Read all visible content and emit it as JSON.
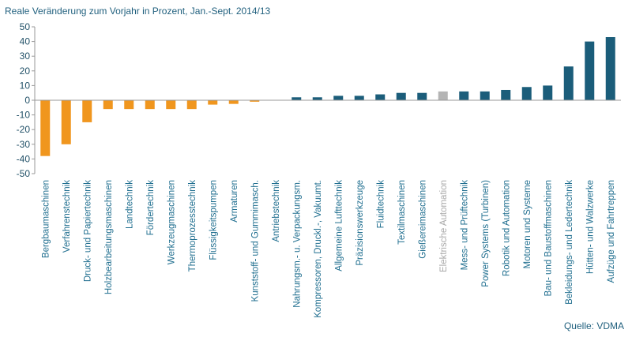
{
  "chart_data": {
    "type": "bar",
    "title": "Reale Veränderung zum Vorjahr in Prozent, Jan.-Sept. 2014/13",
    "source": "Quelle: VDMA",
    "categories": [
      "Bergbaumaschinen",
      "Verfahrenstechnik",
      "Druck- und Papiertechnik",
      "Holzbearbeitungsmaschinen",
      "Landtechnik",
      "Fördertechnik",
      "Werkzeugmaschinen",
      "Thermoprozesstechnik",
      "Flüssigkeitspumpen",
      "Armaturen",
      "Kunststoff- und Gummimasch.",
      "Antriebstechnik",
      "Nahrungsm.- u. Verpackungsm.",
      "Kompressoren, Druckl.-, Vakuumt.",
      "Allgemeine Lufttechnik",
      "Präzisionswerkzeuge",
      "Fluidtechnik",
      "Textilmaschinen",
      "Gießereimaschinen",
      "Elektrische Automation",
      "Mess- und Prüftechnik",
      "Power Systems (Turbinen)",
      "Robotik und Automation",
      "Motoren und Systeme",
      "Bau- und Baustoffmaschinen",
      "Bekleidungs- und Ledertechnik",
      "Hütten- und Walzwerke",
      "Aufzüge und Fahrtreppen"
    ],
    "values": [
      -38,
      -30,
      -15,
      -6,
      -6,
      -6,
      -6,
      -6,
      -3,
      -2.5,
      -1,
      0,
      2,
      2,
      3,
      3,
      4,
      5,
      5,
      6,
      6,
      6,
      7,
      9,
      10,
      23,
      40,
      43
    ],
    "colors": [
      "#f0961e",
      "#f0961e",
      "#f0961e",
      "#f0961e",
      "#f0961e",
      "#f0961e",
      "#f0961e",
      "#f0961e",
      "#f0961e",
      "#f0961e",
      "#f0961e",
      "#1b5d7a",
      "#1b5d7a",
      "#1b5d7a",
      "#1b5d7a",
      "#1b5d7a",
      "#1b5d7a",
      "#1b5d7a",
      "#1b5d7a",
      "#b4b4b4",
      "#1b5d7a",
      "#1b5d7a",
      "#1b5d7a",
      "#1b5d7a",
      "#1b5d7a",
      "#1b5d7a",
      "#1b5d7a",
      "#1b5d7a"
    ],
    "label_colors": [
      "#1f6e8f",
      "#1f6e8f",
      "#1f6e8f",
      "#1f6e8f",
      "#1f6e8f",
      "#1f6e8f",
      "#1f6e8f",
      "#1f6e8f",
      "#1f6e8f",
      "#1f6e8f",
      "#1f6e8f",
      "#1f6e8f",
      "#1f6e8f",
      "#1f6e8f",
      "#1f6e8f",
      "#1f6e8f",
      "#1f6e8f",
      "#1f6e8f",
      "#1f6e8f",
      "#a8a8a8",
      "#1f6e8f",
      "#1f6e8f",
      "#1f6e8f",
      "#1f6e8f",
      "#1f6e8f",
      "#1f6e8f",
      "#1f6e8f",
      "#1f6e8f"
    ],
    "ylim": [
      -50,
      50
    ],
    "yticks": [
      -50,
      -40,
      -30,
      -20,
      -10,
      0,
      10,
      20,
      30,
      40,
      50
    ],
    "grid": false
  }
}
